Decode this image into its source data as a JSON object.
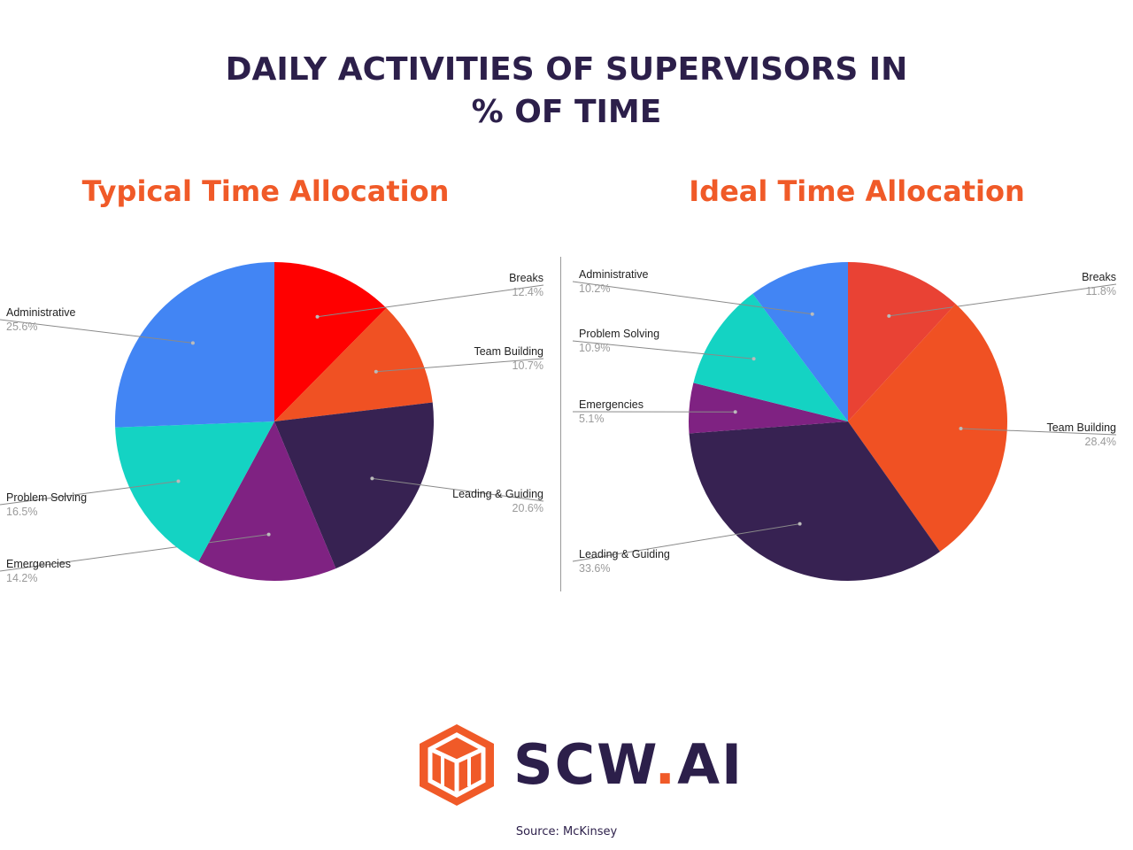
{
  "title_line1": "DAILY ACTIVITIES OF SUPERVISORS IN",
  "title_line2": "% OF TIME",
  "brand": {
    "text": "SCW",
    "dot": ".",
    "suffix": "AI"
  },
  "source": "Source: McKinsey",
  "chart_data": [
    {
      "type": "pie",
      "title": "Typical Time Allocation",
      "slices": [
        {
          "label": "Breaks",
          "value": 12.4,
          "display": "12.4%",
          "color": "#ff0000"
        },
        {
          "label": "Team Building",
          "value": 10.7,
          "display": "10.7%",
          "color": "#f05123"
        },
        {
          "label": "Leading & Guiding",
          "value": 20.6,
          "display": "20.6%",
          "color": "#372252"
        },
        {
          "label": "Emergencies",
          "value": 14.2,
          "display": "14.2%",
          "color": "#7f2282"
        },
        {
          "label": "Problem Solving",
          "value": 16.5,
          "display": "16.5%",
          "color": "#14d3c3"
        },
        {
          "label": "Administrative",
          "value": 25.6,
          "display": "25.6%",
          "color": "#4285f4"
        }
      ]
    },
    {
      "type": "pie",
      "title": "Ideal Time Allocation",
      "slices": [
        {
          "label": "Breaks",
          "value": 11.8,
          "display": "11.8%",
          "color": "#e94234"
        },
        {
          "label": "Team Building",
          "value": 28.4,
          "display": "28.4%",
          "color": "#f05123"
        },
        {
          "label": "Leading & Guiding",
          "value": 33.6,
          "display": "33.6%",
          "color": "#372252"
        },
        {
          "label": "Emergencies",
          "value": 5.1,
          "display": "5.1%",
          "color": "#7f2282"
        },
        {
          "label": "Problem Solving",
          "value": 10.9,
          "display": "10.9%",
          "color": "#14d3c3"
        },
        {
          "label": "Administrative",
          "value": 10.2,
          "display": "10.2%",
          "color": "#4285f4"
        }
      ]
    }
  ]
}
